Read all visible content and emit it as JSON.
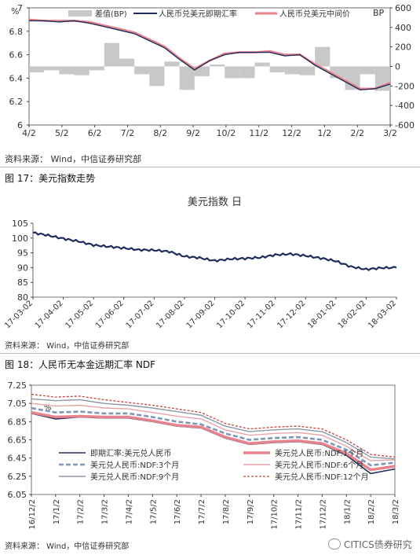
{
  "chart_data": [
    {
      "type": "line",
      "axis_unit_left": "%",
      "axis_unit_right": "BP",
      "legend": [
        "差值(BP)",
        "人民币兑美元即期汇率",
        "人民币兑美元中间价"
      ],
      "x_ticks": [
        "4/2",
        "5/2",
        "6/2",
        "7/2",
        "8/2",
        "9/2",
        "10/2",
        "11/2",
        "12/2",
        "1/2",
        "2/2",
        "3/2"
      ],
      "ylim": [
        6.0,
        7.0
      ],
      "y_ticks": [
        "6",
        "6.2",
        "6.4",
        "6.6",
        "6.8",
        "7"
      ],
      "y2lim": [
        -600,
        600
      ],
      "y2_ticks": [
        "600",
        "400",
        "200",
        "0",
        "-200",
        "-400",
        "-600"
      ],
      "colors": {
        "spot": "#1f2d5a",
        "mid": "#e8828c",
        "diff": "#c8c8c8"
      },
      "series": [
        {
          "name": "人民币兑美元即期汇率",
          "axis": "left",
          "x": [
            0,
            0.5,
            1,
            1.5,
            2,
            2.5,
            3,
            3.5,
            4,
            4.5,
            5,
            5.5,
            6,
            6.5,
            7,
            7.5,
            8,
            8.5,
            9,
            9.5,
            10,
            10.5,
            11,
            11.5,
            12
          ],
          "values": [
            6.89,
            6.89,
            6.88,
            6.89,
            6.87,
            6.84,
            6.81,
            6.78,
            6.72,
            6.66,
            6.56,
            6.47,
            6.55,
            6.6,
            6.62,
            6.62,
            6.62,
            6.59,
            6.6,
            6.51,
            6.44,
            6.37,
            6.3,
            6.31,
            6.35
          ]
        },
        {
          "name": "人民币兑美元中间价",
          "axis": "left",
          "x": [
            0,
            0.5,
            1,
            1.5,
            2,
            2.5,
            3,
            3.5,
            4,
            4.5,
            5,
            5.5,
            6,
            6.5,
            7,
            7.5,
            8,
            8.5,
            9,
            9.5,
            10,
            10.5,
            11,
            11.5,
            12
          ],
          "values": [
            6.9,
            6.89,
            6.89,
            6.89,
            6.88,
            6.85,
            6.82,
            6.79,
            6.73,
            6.67,
            6.57,
            6.48,
            6.55,
            6.61,
            6.62,
            6.62,
            6.63,
            6.6,
            6.6,
            6.52,
            6.45,
            6.38,
            6.31,
            6.31,
            6.36
          ]
        },
        {
          "name": "差值(BP)",
          "axis": "right",
          "x": [
            0,
            0.5,
            1,
            1.5,
            2,
            2.5,
            3,
            3.5,
            4,
            4.5,
            5,
            5.5,
            6,
            6.5,
            7,
            7.5,
            8,
            8.5,
            9,
            9.5,
            10,
            10.5,
            11,
            11.5,
            12
          ],
          "values": [
            -60,
            -40,
            -80,
            -90,
            -40,
            240,
            80,
            -80,
            -200,
            50,
            -240,
            -100,
            20,
            -120,
            -120,
            40,
            -60,
            -80,
            -90,
            200,
            -120,
            -240,
            -80,
            -250,
            -60
          ]
        }
      ],
      "source": "资料来源：  Wind，中信证券研究部"
    },
    {
      "caption": "图 17：美元指数走势",
      "type": "line",
      "title": "美元指数 日",
      "ylim": [
        80,
        105
      ],
      "y_ticks": [
        "105",
        "100",
        "95",
        "90",
        "85",
        "80"
      ],
      "x_ticks": [
        "17-03-02",
        "17-04-02",
        "17-05-02",
        "17-06-02",
        "17-07-02",
        "17-08-02",
        "17-09-02",
        "17-10-02",
        "17-11-02",
        "17-12-02",
        "18-01-02",
        "18-02-02",
        "18-03-02"
      ],
      "color": "#1f2d5a",
      "series": [
        {
          "name": "",
          "x": [
            0,
            0.5,
            1,
            1.5,
            2,
            2.5,
            3,
            3.5,
            4,
            4.5,
            5,
            5.5,
            6,
            6.5,
            7,
            7.5,
            8,
            8.5,
            9,
            9.5,
            10,
            10.5,
            11,
            11.5,
            12
          ],
          "values": [
            101.8,
            100.9,
            99.8,
            98.9,
            97.6,
            97.1,
            96.6,
            96.0,
            95.9,
            95.4,
            93.8,
            93.3,
            92.3,
            92.9,
            93.1,
            93.4,
            94.3,
            94.6,
            94.0,
            93.2,
            92.2,
            90.3,
            89.4,
            89.9,
            90.0
          ]
        }
      ],
      "source": "资料来源：  Wind，中信证券研究部"
    },
    {
      "caption": "图 18：人民币无本金远期汇率 NDF",
      "type": "line",
      "unit_label": "%",
      "ylim": [
        6.05,
        7.25
      ],
      "y_ticks": [
        "7.25",
        "7.05",
        "6.85",
        "6.65",
        "6.45",
        "6.25",
        "6.05"
      ],
      "x_ticks": [
        "16/12/2",
        "17/1/2",
        "17/2/2",
        "17/3/2",
        "17/4/2",
        "17/5/2",
        "17/6/2",
        "17/7/2",
        "17/8/2",
        "17/9/2",
        "17/10/2",
        "17/11/2",
        "17/12/2",
        "18/1/2",
        "18/2/2",
        "18/3/2"
      ],
      "series": [
        {
          "name": "即期汇率:美元兑人民币",
          "color": "#1f2d5a",
          "dash": "solid",
          "x": [
            0,
            1,
            2,
            3,
            4,
            5,
            6,
            7,
            8,
            9,
            10,
            11,
            12,
            13,
            14,
            15
          ],
          "values": [
            6.94,
            6.88,
            6.9,
            6.89,
            6.89,
            6.85,
            6.8,
            6.78,
            6.67,
            6.6,
            6.62,
            6.63,
            6.6,
            6.48,
            6.28,
            6.33
          ]
        },
        {
          "name": "美元兑人民币:NDF:1个月",
          "color": "#e8828c",
          "dash": "solid",
          "x": [
            0,
            1,
            2,
            3,
            4,
            5,
            6,
            7,
            8,
            9,
            10,
            11,
            12,
            13,
            14,
            15
          ],
          "values": [
            6.95,
            6.9,
            6.91,
            6.9,
            6.9,
            6.86,
            6.81,
            6.79,
            6.68,
            6.61,
            6.63,
            6.64,
            6.61,
            6.5,
            6.32,
            6.36
          ]
        },
        {
          "name": "美元兑人民币:NDF:3个月",
          "color": "#7f97b7",
          "dash": "dashed",
          "x": [
            0,
            1,
            2,
            3,
            4,
            5,
            6,
            7,
            8,
            9,
            10,
            11,
            12,
            13,
            14,
            15
          ],
          "values": [
            7.0,
            6.95,
            6.96,
            6.94,
            6.94,
            6.9,
            6.85,
            6.82,
            6.72,
            6.65,
            6.67,
            6.68,
            6.65,
            6.54,
            6.37,
            6.4
          ]
        },
        {
          "name": "美元兑人民币:NDF:6个月",
          "color": "#e8a2a9",
          "dash": "solid",
          "x": [
            0,
            1,
            2,
            3,
            4,
            5,
            6,
            7,
            8,
            9,
            10,
            11,
            12,
            13,
            14,
            15
          ],
          "values": [
            7.05,
            7.02,
            7.03,
            7.0,
            6.99,
            6.95,
            6.91,
            6.88,
            6.76,
            6.7,
            6.72,
            6.73,
            6.7,
            6.58,
            6.42,
            6.43
          ]
        },
        {
          "name": "美元兑人民币:NDF:9个月",
          "color": "#8f97a3",
          "dash": "solid",
          "x": [
            0,
            1,
            2,
            3,
            4,
            5,
            6,
            7,
            8,
            9,
            10,
            11,
            12,
            13,
            14,
            15
          ],
          "values": [
            7.1,
            7.08,
            7.09,
            7.05,
            7.03,
            7.0,
            6.96,
            6.92,
            6.8,
            6.74,
            6.76,
            6.77,
            6.74,
            6.62,
            6.46,
            6.44
          ]
        },
        {
          "name": "美元兑人民币:NDF:12个月",
          "color": "#c8443c",
          "dash": "dashed",
          "x": [
            0,
            1,
            2,
            3,
            4,
            5,
            6,
            7,
            8,
            9,
            10,
            11,
            12,
            13,
            14,
            15
          ],
          "values": [
            7.15,
            7.12,
            7.13,
            7.09,
            7.06,
            7.03,
            6.99,
            6.95,
            6.83,
            6.77,
            6.79,
            6.8,
            6.77,
            6.65,
            6.49,
            6.46
          ]
        }
      ],
      "source": "资料来源：  Wind，中信证券研究部"
    }
  ],
  "watermark": "CITICS债券研究"
}
